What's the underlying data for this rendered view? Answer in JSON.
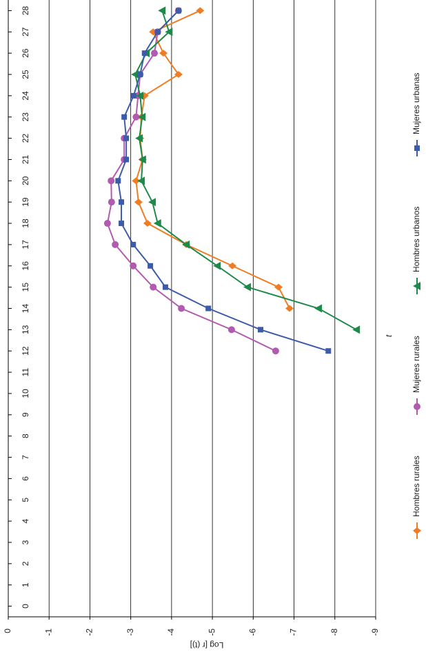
{
  "chart_data": {
    "type": "line",
    "x_label": "t",
    "y_label": "Log [r (t)]",
    "x": [
      0,
      1,
      2,
      3,
      4,
      5,
      6,
      7,
      8,
      9,
      10,
      11,
      12,
      13,
      14,
      15,
      16,
      17,
      18,
      19,
      20,
      21,
      22,
      23,
      24,
      25,
      26,
      27,
      28
    ],
    "xlim": [
      -0.5,
      28.5
    ],
    "xticks": [
      0,
      1,
      2,
      3,
      4,
      5,
      6,
      7,
      8,
      9,
      10,
      11,
      12,
      13,
      14,
      15,
      16,
      17,
      18,
      19,
      20,
      21,
      22,
      23,
      24,
      25,
      26,
      27,
      28
    ],
    "ylim": [
      -9,
      0
    ],
    "yticks": [
      0,
      -1,
      -2,
      -3,
      -4,
      -5,
      -6,
      -7,
      -8,
      -9
    ],
    "grid": true,
    "series": [
      {
        "name": "Hombres rurales",
        "color": "#f07d24",
        "marker": "diamond",
        "values": [
          null,
          null,
          null,
          null,
          null,
          null,
          null,
          null,
          null,
          null,
          null,
          null,
          null,
          null,
          -6.89,
          -6.62,
          -5.49,
          -4.36,
          -3.41,
          -3.19,
          -3.13,
          -3.29,
          -3.23,
          -3.26,
          -3.34,
          -4.17,
          -3.8,
          -3.55,
          -4.7
        ]
      },
      {
        "name": "Mujeres rurales",
        "color": "#b15ab0",
        "marker": "circle",
        "values": [
          null,
          null,
          null,
          null,
          null,
          null,
          null,
          null,
          null,
          null,
          null,
          null,
          -6.55,
          -5.47,
          -4.24,
          -3.55,
          -3.06,
          -2.62,
          -2.43,
          -2.53,
          -2.52,
          -2.84,
          -2.84,
          -3.13,
          -3.18,
          -3.23,
          -3.58,
          -3.66,
          -4.17
        ]
      },
      {
        "name": "Hombres urbanos",
        "color": "#1e8a4a",
        "marker": "triangle",
        "values": [
          null,
          null,
          null,
          null,
          null,
          null,
          null,
          null,
          null,
          null,
          null,
          null,
          null,
          -8.53,
          -7.6,
          -5.86,
          -5.12,
          -4.36,
          -3.66,
          -3.53,
          -3.26,
          -3.29,
          -3.21,
          -3.28,
          -3.23,
          -3.11,
          -3.38,
          -3.94,
          -3.77
        ]
      },
      {
        "name": "Mujeres urbanas",
        "color": "#3c5ca8",
        "marker": "square",
        "values": [
          null,
          null,
          null,
          null,
          null,
          null,
          null,
          null,
          null,
          null,
          null,
          null,
          -7.84,
          -6.18,
          -4.9,
          -3.85,
          -3.48,
          -3.06,
          -2.77,
          -2.77,
          -2.69,
          -2.89,
          -2.89,
          -2.84,
          -3.07,
          -3.23,
          -3.34,
          -3.66,
          -4.17
        ]
      }
    ]
  }
}
